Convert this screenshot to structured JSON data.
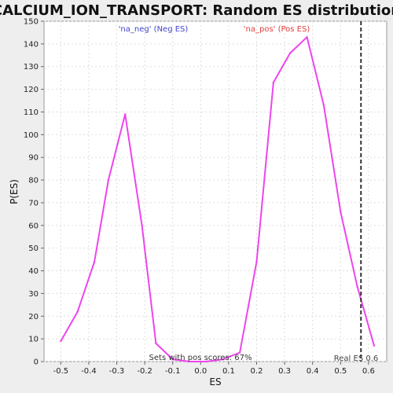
{
  "chart_data": {
    "type": "line",
    "title": "CALCIUM_ION_TRANSPORT: Random ES distribution",
    "xlabel": "ES",
    "ylabel": "P(ES)",
    "xlim": [
      -0.56,
      0.665
    ],
    "ylim": [
      0,
      150
    ],
    "xticks": [
      -0.5,
      -0.4,
      -0.3,
      -0.2,
      -0.1,
      0.0,
      0.1,
      0.2,
      0.3,
      0.4,
      0.5,
      0.6
    ],
    "xtick_labels": [
      "-0.5",
      "-0.4",
      "-0.3",
      "-0.2",
      "-0.1",
      "0.0",
      "0.1",
      "0.2",
      "0.3",
      "0.4",
      "0.5",
      "0.6"
    ],
    "yticks": [
      0,
      10,
      20,
      30,
      40,
      50,
      60,
      70,
      80,
      90,
      100,
      110,
      120,
      130,
      140,
      150
    ],
    "ytick_labels": [
      "0",
      "10",
      "20",
      "30",
      "40",
      "50",
      "60",
      "70",
      "80",
      "90",
      "100",
      "110",
      "120",
      "130",
      "140",
      "150"
    ],
    "grid": true,
    "series": [
      {
        "color": "#ee44ee",
        "x": [
          -0.5,
          -0.44,
          -0.38,
          -0.33,
          -0.27,
          -0.21,
          -0.16,
          -0.1,
          -0.04,
          0.02,
          0.08,
          0.14,
          0.2,
          0.26,
          0.32,
          0.38,
          0.44,
          0.5,
          0.56,
          0.62
        ],
        "y": [
          9,
          22,
          44,
          80,
          109,
          60,
          8,
          1,
          0,
          0,
          1,
          4,
          44,
          123,
          136,
          143,
          113,
          66,
          33,
          7
        ]
      }
    ],
    "vline": {
      "x": 0.573,
      "label": "Real ES 0.6"
    },
    "annotations": [
      {
        "text": "'na_neg' (Neg ES)",
        "color": "#4444cc"
      },
      {
        "text": "'na_pos' (Pos ES)",
        "color": "#e23b3b"
      },
      {
        "text": "Sets with pos scores: 67%",
        "color": "#333333"
      }
    ]
  }
}
